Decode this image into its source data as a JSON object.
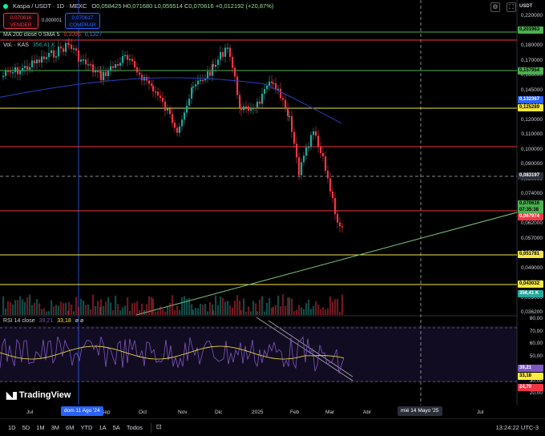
{
  "legend": {
    "symbol": "Kaspa / USDT · 1D · MEXC",
    "open_label": "O",
    "open": "0,058425",
    "high_label": "H",
    "high": "0,071680",
    "low_label": "L",
    "low": "0,055514",
    "close_label": "C",
    "close": "0,070616",
    "change": "+0,012192 (+20,87%)"
  },
  "trade": {
    "sell_price": "0,070616",
    "sell_label": "VENDER",
    "spread": "0,000001",
    "buy_price": "0,070617",
    "buy_label": "COMPRAR"
  },
  "indicators": {
    "ma_label": "MA 200 close 0 SMA 5",
    "ma_val1": "0,1096",
    "ma_val2": "0,1327",
    "vol_label": "Vol. · KAS",
    "vol_value": "356,41 K"
  },
  "rsi": {
    "label": "RSI 14 close",
    "val1": "39,21",
    "val2": "33,18",
    "extra": "ø ø"
  },
  "colors": {
    "bull": "#26a69a",
    "bear": "#f23645",
    "ma": "#2b3dbd",
    "rsi": "#7e57c2",
    "rsi_ma": "#ffeb3b",
    "hline_red": "#f23645",
    "hline_yellow": "#f5e642",
    "hline_green": "#4caf50"
  },
  "price_scale": [
    "0,220000",
    "0,200000",
    "0,180000",
    "0,170000",
    "0,160000",
    "0,145000",
    "0,130000",
    "0,120000",
    "0,110000",
    "0,100000",
    "0,090000",
    "0,080000",
    "0,074000",
    "0,068000",
    "0,062000",
    "0,057000",
    "0,053000",
    "0,049000",
    "0,045500",
    "0,039000",
    "0,036200"
  ],
  "rsi_scale": [
    "80,00",
    "70,00",
    "60,00",
    "50,00",
    "40,00",
    "30,00",
    "20,00"
  ],
  "price_tags": [
    {
      "text": "USDT",
      "type": "ccy"
    },
    {
      "text": "0,201963",
      "type": "green"
    },
    {
      "text": "0,157954",
      "type": "green"
    },
    {
      "text": "0,132367",
      "type": "blue"
    },
    {
      "text": "0,125289",
      "type": "yellow"
    },
    {
      "text": "0,083197",
      "type": "dark"
    },
    {
      "text": "0,070616",
      "type": "green"
    },
    {
      "text": "07:35:38",
      "type": "green"
    },
    {
      "text": "0,067974",
      "type": "red"
    },
    {
      "text": "0,051781",
      "type": "yellow"
    },
    {
      "text": "0,043032",
      "type": "yellow"
    },
    {
      "text": "356,41 K",
      "type": "teal"
    }
  ],
  "rsi_tags": [
    "39,21",
    "33,18",
    "24,70"
  ],
  "time_axis": [
    "Jul",
    "Sep",
    "Oct",
    "Nov",
    "Dic",
    "2025",
    "Feb",
    "Mar",
    "Abr",
    "Jul"
  ],
  "time_highlight_1": "dom 11 Ago '24",
  "time_highlight_2": "mié 14 Mayo '25",
  "branding": "TradingView",
  "toolbar": {
    "timeframes": [
      "1D",
      "5D",
      "1M",
      "3M",
      "6M",
      "YTD",
      "1A",
      "5A",
      "Todos"
    ],
    "clock": "13:24:22 UTC-3"
  }
}
